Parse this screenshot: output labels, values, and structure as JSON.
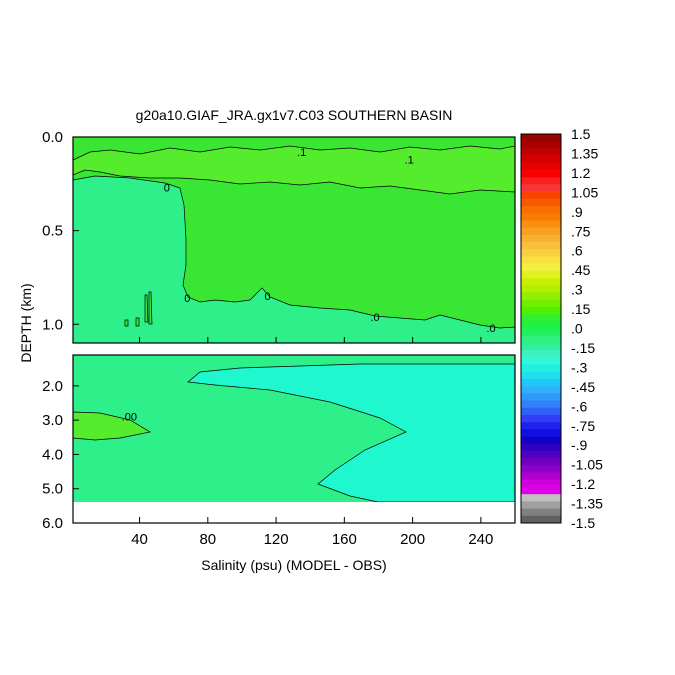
{
  "chart_data": {
    "type": "heatmap",
    "title": "g20a10.GIAF_JRA.gx1v7.C03 SOUTHERN BASIN",
    "xlabel": "Salinity (psu) (MODEL - OBS)",
    "ylabel": "DEPTH (km)",
    "x_ticks": [
      "40",
      "80",
      "120",
      "160",
      "200",
      "240"
    ],
    "x_tick_values": [
      40,
      80,
      120,
      160,
      200,
      240
    ],
    "xlim": [
      1,
      260
    ],
    "upper_panel": {
      "ylim": [
        0.0,
        1.1
      ],
      "y_ticks": [
        "0.0",
        "0.5",
        "1.0"
      ],
      "y_tick_values": [
        0.0,
        0.5,
        1.0
      ],
      "contour_labels": [
        {
          "text": ".1",
          "x": 135,
          "y": 0.08
        },
        {
          "text": ".1",
          "x": 198,
          "y": 0.12
        },
        {
          "text": "0",
          "x": 56,
          "y": 0.27
        },
        {
          "text": "0",
          "x": 68,
          "y": 0.86
        },
        {
          "text": "0",
          "x": 115,
          "y": 0.85
        },
        {
          "text": ".0",
          "x": 178,
          "y": 0.96
        },
        {
          "text": ".0",
          "x": 246,
          "y": 1.02
        }
      ]
    },
    "lower_panel": {
      "ylim": [
        1.1,
        6.0
      ],
      "y_ticks": [
        "2.0",
        "3.0",
        "4.0",
        "5.0",
        "6.0"
      ],
      "y_tick_values": [
        2.0,
        3.0,
        4.0,
        5.0,
        6.0
      ],
      "contour_labels": [
        {
          "text": ".00",
          "x": 34,
          "y": 2.9
        }
      ]
    },
    "colorbar": {
      "labels": [
        "1.5",
        "1.35",
        "1.2",
        "1.05",
        ".9",
        ".75",
        ".6",
        ".45",
        ".3",
        ".15",
        ".0",
        "-.15",
        "-.3",
        "-.45",
        "-.6",
        "-.75",
        "-.9",
        "-1.05",
        "-1.2",
        "-1.35",
        "-1.5"
      ],
      "colors": [
        "#990000",
        "#aa0000",
        "#c00000",
        "#d40000",
        "#e80000",
        "#f80000",
        "#f82020",
        "#f83838",
        "#f84400",
        "#f85a00",
        "#f86e00",
        "#f87c00",
        "#f89010",
        "#f8a020",
        "#f8b030",
        "#f8c038",
        "#f8d040",
        "#f8e040",
        "#f0f040",
        "#e0f020",
        "#c8f000",
        "#b0f000",
        "#90f000",
        "#70f000",
        "#50f000",
        "#30f030",
        "#20f040",
        "#20f060",
        "#30f080",
        "#30f0a0",
        "#40f0c0",
        "#30f8d8",
        "#20f0e0",
        "#20e0f0",
        "#20c8f8",
        "#30b0f8",
        "#3098f8",
        "#3080f8",
        "#3060f8",
        "#3040f8",
        "#2020f0",
        "#1010e0",
        "#1000c8",
        "#3000c0",
        "#5000c0",
        "#7000c0",
        "#9000c8",
        "#b000d0",
        "#d000e0",
        "#e000e8",
        "#c0c0c0",
        "#a0a0a0",
        "#808080",
        "#606060"
      ]
    },
    "fill_colors": {
      "green": "#3ae634",
      "light_green": "#56ec2e",
      "aqua_green": "#2ef08a",
      "cyan": "#1ff7cf",
      "missing": "#ffffff"
    }
  }
}
